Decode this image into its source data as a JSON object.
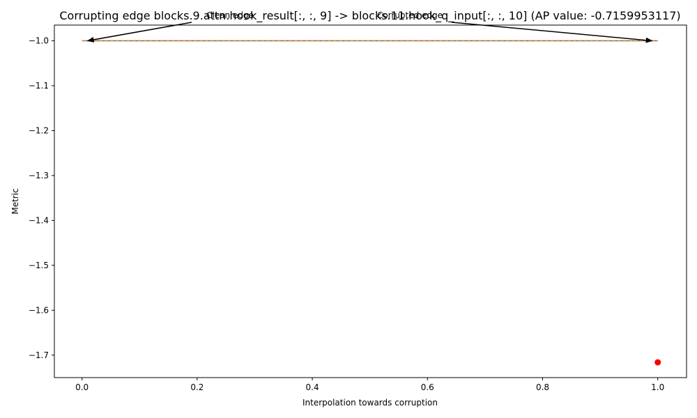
{
  "chart_data": {
    "type": "line",
    "title": "Corrupting edge blocks.9.attn.hook_result[:, :, 9] -> blocks.11.hook_q_input[:, :, 10] (AP value: -0.7159953117)",
    "xlabel": "Interpolation towards corruption",
    "ylabel": "Metric",
    "xlim": [
      -0.048,
      1.05
    ],
    "ylim": [
      -1.75,
      -0.965
    ],
    "xticks": [
      0.0,
      0.2,
      0.4,
      0.6,
      0.8,
      1.0
    ],
    "xtick_labels": [
      "0.0",
      "0.2",
      "0.4",
      "0.6",
      "0.8",
      "1.0"
    ],
    "yticks": [
      -1.0,
      -1.1,
      -1.2,
      -1.3,
      -1.4,
      -1.5,
      -1.6,
      -1.7
    ],
    "ytick_labels": [
      "−1.0",
      "−1.1",
      "−1.2",
      "−1.3",
      "−1.4",
      "−1.5",
      "−1.6",
      "−1.7"
    ],
    "grid": false,
    "series": [
      {
        "x": [
          0.0,
          1.0
        ],
        "y": [
          -1.0,
          -1.0
        ],
        "color": "#1f77b4",
        "style": "solid"
      },
      {
        "x": [
          0.0,
          1.0
        ],
        "y": [
          -1.0,
          -1.0
        ],
        "color": "#ff7f0e",
        "style": "dashed"
      },
      {
        "x": [
          1.0
        ],
        "y": [
          -1.716
        ],
        "color": "#ff0000",
        "style": "marker"
      }
    ],
    "annotations": [
      {
        "text": "Clean edge",
        "x": 0.0,
        "y": -1.0
      },
      {
        "text": "Corrupted edge",
        "x": 1.0,
        "y": -1.0
      }
    ]
  }
}
